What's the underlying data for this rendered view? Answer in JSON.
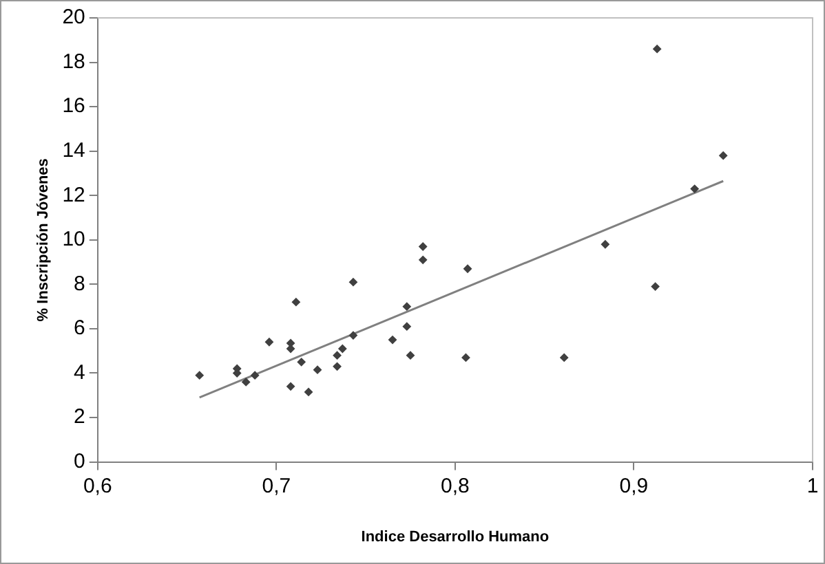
{
  "chart_data": {
    "type": "scatter",
    "xlabel": "Indice Desarrollo Humano",
    "ylabel": "% Inscripción Jóvenes",
    "xlim": [
      0.6,
      1
    ],
    "xticks": [
      {
        "value": 0.6,
        "label": "0,6"
      },
      {
        "value": 0.7,
        "label": "0,7"
      },
      {
        "value": 0.8,
        "label": "0,8"
      },
      {
        "value": 0.9,
        "label": "0,9"
      },
      1
    ],
    "ylim": [
      0,
      20
    ],
    "yticks": [
      0,
      2,
      4,
      6,
      8,
      10,
      12,
      14,
      16,
      18,
      20
    ],
    "grid": false,
    "legend": false,
    "marker": "diamond",
    "series": [
      {
        "color": "#404040",
        "x": [
          0.657,
          0.678,
          0.678,
          0.683,
          0.688,
          0.696,
          0.708,
          0.708,
          0.708,
          0.711,
          0.714,
          0.718,
          0.723,
          0.734,
          0.734,
          0.737,
          0.743,
          0.743,
          0.765,
          0.773,
          0.773,
          0.775,
          0.782,
          0.782,
          0.806,
          0.807,
          0.861,
          0.884,
          0.912,
          0.913,
          0.934,
          0.95
        ],
        "values": [
          3.9,
          4.2,
          4.0,
          3.6,
          3.9,
          5.4,
          5.35,
          5.1,
          3.4,
          7.2,
          4.5,
          3.15,
          4.15,
          4.3,
          4.8,
          5.1,
          5.7,
          8.1,
          5.5,
          7.0,
          6.1,
          4.8,
          9.7,
          9.1,
          4.7,
          8.7,
          4.7,
          9.8,
          7.9,
          18.6,
          12.3,
          13.8
        ]
      },
      {
        "type": "line",
        "color": "#808080",
        "marker": "none",
        "line_style": "solid",
        "x": [
          0.657,
          0.95
        ],
        "values": [
          2.9,
          12.65
        ]
      }
    ]
  }
}
